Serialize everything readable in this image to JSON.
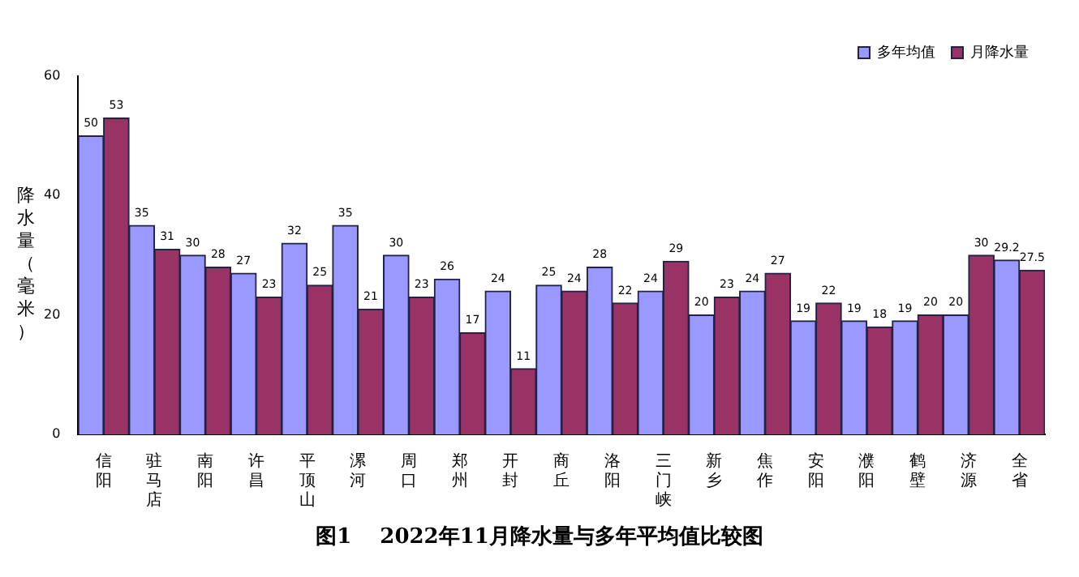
{
  "chart_data": {
    "type": "bar",
    "title": "图1　 2022年11月降水量与多年平均值比较图",
    "ylabel": "降水量（毫米）",
    "categories": [
      "信阳",
      "驻马店",
      "南阳",
      "许昌",
      "平顶山",
      "漯河",
      "周口",
      "郑州",
      "开封",
      "商丘",
      "洛阳",
      "三门峡",
      "新乡",
      "焦作",
      "安阳",
      "濮阳",
      "鹤壁",
      "济源",
      "全省"
    ],
    "series": [
      {
        "name": "多年均值",
        "color": "#9999ff",
        "values": [
          50,
          35,
          30,
          27,
          32,
          35,
          30,
          26,
          24,
          25,
          28,
          24,
          20,
          24,
          19,
          19,
          19,
          20,
          29.2
        ]
      },
      {
        "name": "月降水量",
        "color": "#993366",
        "values": [
          53,
          31,
          28,
          23,
          25,
          21,
          23,
          17,
          11,
          24,
          22,
          29,
          23,
          27,
          22,
          18,
          20,
          30,
          27.5
        ]
      }
    ],
    "ylim": [
      0,
      60
    ],
    "yticks": [
      0,
      20,
      40,
      60
    ],
    "grid": false,
    "legend": "top right",
    "data_labels": true
  }
}
